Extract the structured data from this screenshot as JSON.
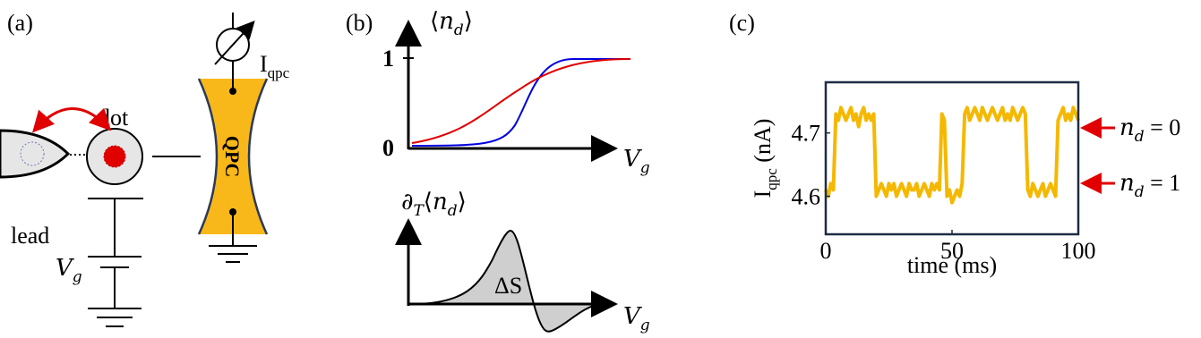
{
  "panels": {
    "a": {
      "label": "(a)",
      "lead": "lead",
      "dot": "dot",
      "qpc": "QPC",
      "current": [
        "I",
        "qpc"
      ],
      "gate": [
        "V",
        "g"
      ]
    },
    "b": {
      "label": "(b)",
      "top_ylabel": [
        "⟨",
        "n",
        "d",
        "⟩"
      ],
      "ytick_high": "1",
      "ytick_low": "0",
      "top_xlabel": [
        "V",
        "g"
      ],
      "bottom_ylabel": [
        "∂",
        "T",
        "⟨",
        "n",
        "d",
        "⟩"
      ],
      "area": "ΔS",
      "bottom_xlabel": [
        "V",
        "g"
      ]
    },
    "c": {
      "label": "(c)"
    }
  },
  "chart_data": {
    "type": "line",
    "xlabel": "time (ms)",
    "ylabel": [
      "I",
      "qpc",
      " (nA)"
    ],
    "x": [
      0,
      1,
      2,
      3,
      4,
      5,
      6,
      7,
      8,
      9,
      10,
      11,
      12,
      13,
      14,
      15,
      16,
      17,
      18,
      19,
      20,
      21,
      22,
      23,
      24,
      25,
      26,
      27,
      28,
      29,
      30,
      31,
      32,
      33,
      34,
      35,
      36,
      37,
      38,
      39,
      40,
      41,
      42,
      43,
      44,
      45,
      46,
      47,
      48,
      49,
      50,
      51,
      52,
      53,
      54,
      55,
      56,
      57,
      58,
      59,
      60,
      61,
      62,
      63,
      64,
      65,
      66,
      67,
      68,
      69,
      70,
      71,
      72,
      73,
      74,
      75,
      76,
      77,
      78,
      79,
      80,
      81,
      82,
      83,
      84,
      85,
      86,
      87,
      88,
      89,
      90,
      91,
      92,
      93,
      94,
      95,
      96,
      97,
      98,
      99,
      100
    ],
    "series": [
      {
        "color": "#f5b800",
        "values": [
          4.61,
          4.6,
          4.62,
          4.61,
          4.73,
          4.72,
          4.74,
          4.73,
          4.72,
          4.73,
          4.74,
          4.72,
          4.73,
          4.71,
          4.73,
          4.74,
          4.72,
          4.73,
          4.72,
          4.73,
          4.6,
          4.61,
          4.62,
          4.61,
          4.6,
          4.62,
          4.61,
          4.62,
          4.6,
          4.61,
          4.62,
          4.61,
          4.6,
          4.62,
          4.61,
          4.61,
          4.62,
          4.6,
          4.61,
          4.62,
          4.61,
          4.6,
          4.62,
          4.61,
          4.62,
          4.61,
          4.73,
          4.72,
          4.6,
          4.61,
          4.59,
          4.6,
          4.61,
          4.6,
          4.62,
          4.73,
          4.74,
          4.72,
          4.73,
          4.74,
          4.73,
          4.72,
          4.74,
          4.73,
          4.72,
          4.73,
          4.74,
          4.73,
          4.72,
          4.73,
          4.74,
          4.72,
          4.73,
          4.72,
          4.74,
          4.73,
          4.72,
          4.73,
          4.74,
          4.73,
          4.61,
          4.6,
          4.62,
          4.61,
          4.6,
          4.61,
          4.62,
          4.6,
          4.61,
          4.62,
          4.61,
          4.6,
          4.72,
          4.73,
          4.74,
          4.72,
          4.73,
          4.72,
          4.74,
          4.73,
          4.72
        ]
      }
    ],
    "xlim": [
      0,
      100
    ],
    "xticks": [
      0,
      50,
      100
    ],
    "ylim": [
      4.54,
      4.78
    ],
    "yticks": [
      4.6,
      4.7
    ],
    "annotations": [
      {
        "text": [
          "n",
          "d",
          " = 0"
        ],
        "color": "#e00000"
      },
      {
        "text": [
          "n",
          "d",
          " = 1"
        ],
        "color": "#e00000"
      }
    ]
  }
}
